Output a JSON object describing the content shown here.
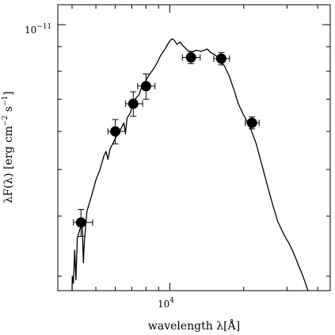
{
  "chart_data": {
    "type": "scatter",
    "xlabel": "wavelength λ[Å]",
    "ylabel_main": "λF(λ) [erg cm",
    "ylabel_exp1": "−2",
    "ylabel_mid": " s",
    "ylabel_exp2": "−1",
    "ylabel_end": "]",
    "x_scale": "log",
    "y_scale": "log",
    "xlim": [
      3500,
      45000
    ],
    "ylim": [
      2.8e-12,
      1.1e-11
    ],
    "x_tick_label": "10",
    "x_tick_exp": "4",
    "y_tick_label": "10",
    "y_tick_exp": "−11",
    "photometry": [
      {
        "x": 4350,
        "y": 3.88e-12,
        "xerr_lo": 300,
        "xerr_hi": 500,
        "yerr": 2.5e-13
      },
      {
        "x": 6000,
        "y": 6e-12,
        "xerr_lo": 400,
        "xerr_hi": 600,
        "yerr": 3.5e-13
      },
      {
        "x": 7100,
        "y": 6.85e-12,
        "xerr_lo": 500,
        "xerr_hi": 650,
        "yerr": 4e-13
      },
      {
        "x": 8000,
        "y": 7.45e-12,
        "xerr_lo": 600,
        "xerr_hi": 700,
        "yerr": 4.5e-13
      },
      {
        "x": 12200,
        "y": 8.55e-12,
        "xerr_lo": 950,
        "xerr_hi": 1100,
        "yerr": 2.5e-13
      },
      {
        "x": 16200,
        "y": 8.5e-12,
        "xerr_lo": 1100,
        "xerr_hi": 1300,
        "yerr": 2.5e-13
      },
      {
        "x": 21600,
        "y": 6.25e-12,
        "xerr_lo": 1300,
        "xerr_hi": 1500,
        "yerr": 1.8e-13
      }
    ],
    "model_sed": [
      [
        4000,
        2.8e-12
      ],
      [
        4010,
        3e-12
      ],
      [
        4050,
        2.9e-12
      ],
      [
        4100,
        3.4e-12
      ],
      [
        4150,
        2.95e-12
      ],
      [
        4200,
        3.6e-12
      ],
      [
        4300,
        3.75e-12
      ],
      [
        4400,
        3.85e-12
      ],
      [
        4450,
        3.2e-12
      ],
      [
        4480,
        3.5e-12
      ],
      [
        4600,
        4.1e-12
      ],
      [
        4800,
        4.4e-12
      ],
      [
        5000,
        4.75e-12
      ],
      [
        5200,
        5e-12
      ],
      [
        5400,
        5.35e-12
      ],
      [
        5500,
        5.45e-12
      ],
      [
        5600,
        5.25e-12
      ],
      [
        5700,
        5.5e-12
      ],
      [
        5900,
        5.7e-12
      ],
      [
        6100,
        5.9e-12
      ],
      [
        6300,
        6.05e-12
      ],
      [
        6500,
        6.25e-12
      ],
      [
        6600,
        5.95e-12
      ],
      [
        6700,
        6.4e-12
      ],
      [
        6900,
        6.55e-12
      ],
      [
        7100,
        6.9e-12
      ],
      [
        7300,
        7.05e-12
      ],
      [
        7500,
        7.15e-12
      ],
      [
        7700,
        7.45e-12
      ],
      [
        7900,
        7.55e-12
      ],
      [
        8100,
        7.75e-12
      ],
      [
        8300,
        7.9e-12
      ],
      [
        8600,
        8.1e-12
      ],
      [
        8900,
        8.35e-12
      ],
      [
        9200,
        8.65e-12
      ],
      [
        9500,
        8.85e-12
      ],
      [
        9800,
        9.1e-12
      ],
      [
        10000,
        9.25e-12
      ],
      [
        10200,
        9.35e-12
      ],
      [
        10400,
        9.3e-12
      ],
      [
        10700,
        9.1e-12
      ],
      [
        11000,
        9.2e-12
      ],
      [
        11400,
        9e-12
      ],
      [
        11800,
        8.85e-12
      ],
      [
        12200,
        8.75e-12
      ],
      [
        12800,
        8.85e-12
      ],
      [
        13400,
        8.8e-12
      ],
      [
        14200,
        8.9e-12
      ],
      [
        14700,
        8.75e-12
      ],
      [
        15300,
        8.65e-12
      ],
      [
        16000,
        8.45e-12
      ],
      [
        16700,
        8.2e-12
      ],
      [
        17400,
        7.85e-12
      ],
      [
        18200,
        7.35e-12
      ],
      [
        19000,
        6.85e-12
      ],
      [
        19800,
        6.55e-12
      ],
      [
        20600,
        6.3e-12
      ],
      [
        21400,
        6.05e-12
      ],
      [
        22500,
        5.65e-12
      ],
      [
        23500,
        5.2e-12
      ],
      [
        24500,
        4.8e-12
      ],
      [
        25500,
        4.45e-12
      ],
      [
        26500,
        4.15e-12
      ],
      [
        27500,
        3.9e-12
      ],
      [
        28500,
        3.75e-12
      ],
      [
        29500,
        3.62e-12
      ],
      [
        30500,
        3.52e-12
      ],
      [
        31500,
        3.4e-12
      ],
      [
        32500,
        3.28e-12
      ],
      [
        33500,
        3.15e-12
      ],
      [
        34500,
        3.04e-12
      ],
      [
        35500,
        2.92e-12
      ],
      [
        36500,
        2.8e-12
      ]
    ]
  }
}
